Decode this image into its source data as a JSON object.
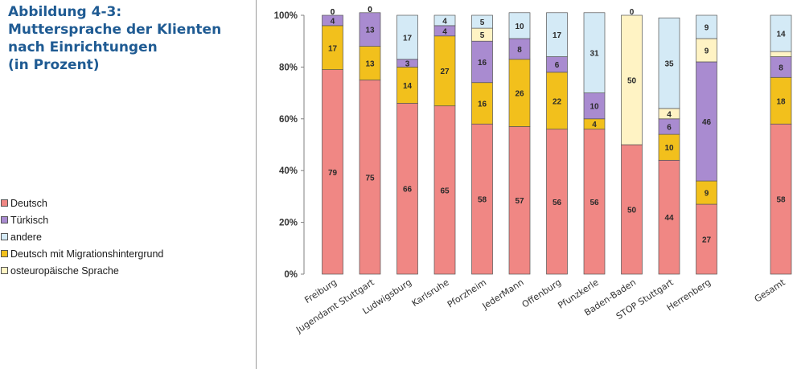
{
  "caption": {
    "lines": [
      "Abbildung 4-3:",
      "Muttersprache der Klienten",
      "nach Einrichtungen",
      "(in Prozent)"
    ]
  },
  "colors": {
    "deutsch": "#f08784",
    "tuerkisch": "#a98bd0",
    "andere": "#d4eaf6",
    "migration": "#f2c01c",
    "osteuropa": "#fff3c4",
    "caption": "#1f5b93",
    "axis": "#808080"
  },
  "legend": {
    "items": [
      {
        "label": "Deutsch",
        "color": "#f08784"
      },
      {
        "label": "Türkisch",
        "color": "#a98bd0"
      },
      {
        "label": "andere",
        "color": "#d4eaf6"
      },
      {
        "label": "Deutsch mit Migrationshintergrund",
        "color": "#f2c01c"
      },
      {
        "label": "osteuropäische Sprache",
        "color": "#fff3c4"
      }
    ]
  },
  "chart_data": {
    "type": "bar",
    "stacked": true,
    "title": "",
    "xlabel": "",
    "ylabel": "",
    "ylim": [
      0,
      100
    ],
    "yticks": [
      "0%",
      "20%",
      "40%",
      "60%",
      "80%",
      "100%"
    ],
    "categories": [
      "Freiburg",
      "Jugendamt Stuttgart",
      "Ludwigsburg",
      "Karlsruhe",
      "Pforzheim",
      "JederMann",
      "Offenburg",
      "Pfunzkerle",
      "Baden-Baden",
      "STOP Stuttgart",
      "Herrenberg",
      "Gesamt"
    ],
    "gap_before_index": 11,
    "series": [
      {
        "name": "Deutsch",
        "color": "#f08784",
        "values": [
          79,
          75,
          66,
          65,
          58,
          57,
          56,
          56,
          50,
          44,
          27,
          58
        ]
      },
      {
        "name": "Deutsch mit Migrationshintergrund",
        "color": "#f2c01c",
        "values": [
          17,
          13,
          14,
          27,
          16,
          26,
          22,
          4,
          0,
          10,
          9,
          18
        ]
      },
      {
        "name": "Türkisch",
        "color": "#a98bd0",
        "values": [
          4,
          13,
          3,
          4,
          16,
          8,
          6,
          10,
          0,
          6,
          46,
          8
        ]
      },
      {
        "name": "osteuropäische Sprache",
        "color": "#fff3c4",
        "values": [
          0,
          0,
          0,
          0,
          5,
          0,
          0,
          0,
          50,
          4,
          9,
          2
        ]
      },
      {
        "name": "andere",
        "color": "#d4eaf6",
        "values": [
          0,
          0,
          17,
          4,
          5,
          10,
          17,
          31,
          0,
          35,
          9,
          14
        ]
      }
    ],
    "labels": [
      [
        "79",
        "17",
        "4",
        "0",
        "0"
      ],
      [
        "75",
        "13",
        "13",
        "0",
        "0"
      ],
      [
        "66",
        "14",
        "3",
        "",
        "17"
      ],
      [
        "65",
        "27",
        "4",
        "0",
        "4"
      ],
      [
        "58",
        "16",
        "16",
        "5",
        "5"
      ],
      [
        "57",
        "26",
        "8",
        "0",
        "10"
      ],
      [
        "56",
        "22",
        "6",
        "0",
        "17"
      ],
      [
        "56",
        "4",
        "10",
        "0",
        "31"
      ],
      [
        "50",
        "0",
        "",
        "50",
        "0"
      ],
      [
        "44",
        "10",
        "6",
        "4",
        "35"
      ],
      [
        "27",
        "9",
        "46",
        "9",
        "9"
      ],
      [
        "58",
        "18",
        "8",
        "2",
        "14"
      ]
    ]
  }
}
